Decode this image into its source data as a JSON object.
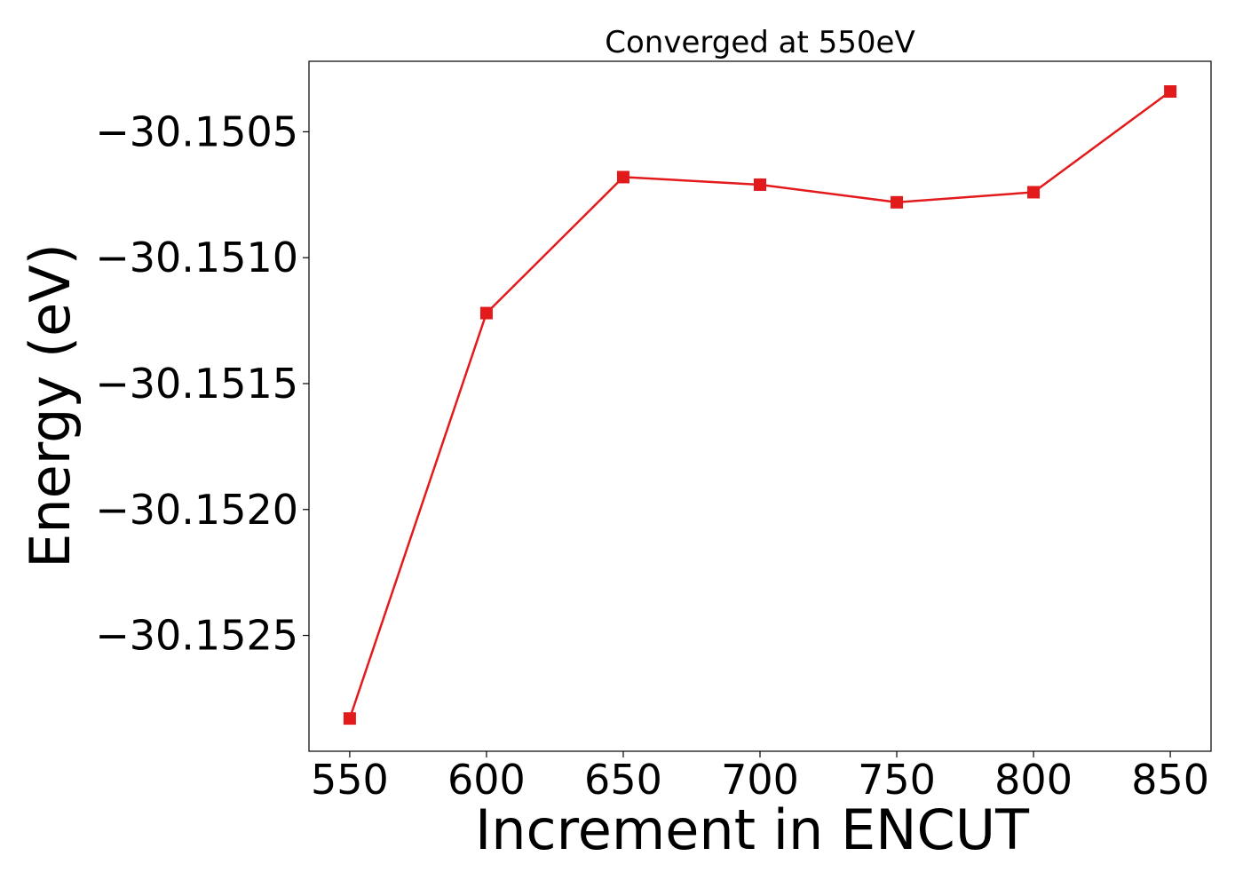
{
  "chart_data": {
    "type": "line",
    "title": "Converged at 550eV",
    "xlabel": "Increment in ENCUT",
    "ylabel": "Energy (eV)",
    "x": [
      550,
      600,
      650,
      700,
      750,
      800,
      850
    ],
    "series": [
      {
        "values": [
          -30.15283,
          -30.15122,
          -30.15068,
          -30.15071,
          -30.15078,
          -30.15074,
          -30.15034
        ],
        "color": "#e31a1c",
        "marker": "square"
      }
    ],
    "xticks": [
      550,
      600,
      650,
      700,
      750,
      800,
      850
    ],
    "xtick_labels": [
      "550",
      "600",
      "650",
      "700",
      "750",
      "800",
      "850"
    ],
    "yticks": [
      -30.1525,
      -30.152,
      -30.1515,
      -30.151,
      -30.1505
    ],
    "ytick_labels": [
      "−30.1525",
      "−30.1520",
      "−30.1515",
      "−30.1510",
      "−30.1505"
    ],
    "xlim": [
      535.1,
      864.9
    ],
    "ylim": [
      -30.15296,
      -30.15022
    ],
    "grid": false,
    "legend": "none"
  }
}
